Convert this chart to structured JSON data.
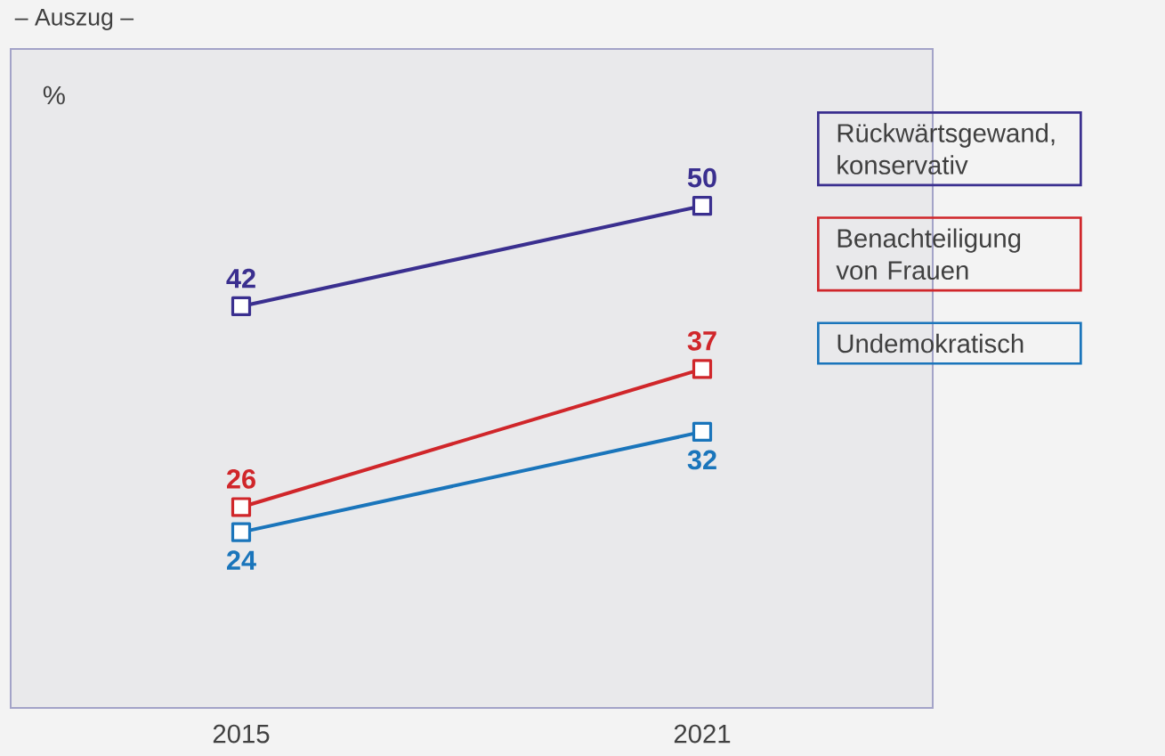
{
  "chart_data": {
    "type": "line",
    "title": "– Auszug –",
    "ylabel": "%",
    "categories": [
      "2015",
      "2021"
    ],
    "series": [
      {
        "name": "Rückwärtsgewand, konservativ",
        "color": "#3a2f8f",
        "values": [
          42,
          50
        ]
      },
      {
        "name": "Benachteiligung von Frauen",
        "color": "#d0262a",
        "values": [
          26,
          37
        ]
      },
      {
        "name": "Undemokratisch",
        "color": "#1a75bb",
        "values": [
          24,
          32
        ]
      }
    ],
    "ylim": [
      10,
      62.5
    ],
    "tick_labels": "x",
    "data_labels": true,
    "legend": "right",
    "marker": "square",
    "line_style": "solid"
  }
}
